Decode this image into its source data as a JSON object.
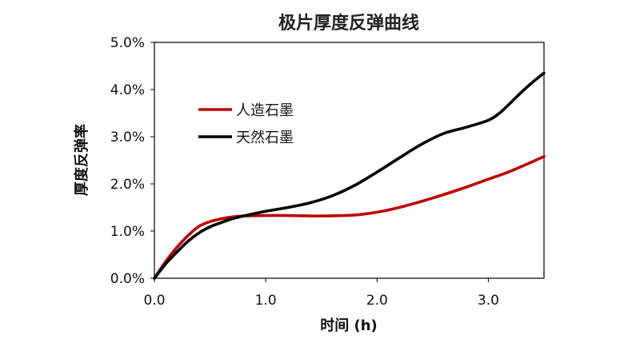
{
  "chart_data": {
    "type": "line",
    "title": "极片厚度反弹曲线",
    "xlabel": "时间 (h)",
    "ylabel": "厚度反弹率",
    "xlim": [
      0,
      3.5
    ],
    "ylim": [
      0,
      5.0
    ],
    "xticks": [
      0,
      1,
      2,
      3
    ],
    "xtick_labels": [
      "0.0",
      "1.0",
      "2.0",
      "3.0"
    ],
    "yticks": [
      0,
      1,
      2,
      3,
      4,
      5
    ],
    "ytick_labels": [
      "0.0%",
      "1.0%",
      "2.0%",
      "3.0%",
      "4.0%",
      "5.0%"
    ],
    "grid": false,
    "legend_position": "upper-left",
    "series": [
      {
        "name": "人造石墨",
        "color": "#c00000",
        "x": [
          0,
          0.1,
          0.2,
          0.3,
          0.4,
          0.5,
          0.6,
          0.7,
          0.8,
          1.0,
          1.2,
          1.5,
          1.8,
          2.0,
          2.2,
          2.5,
          2.8,
          3.0,
          3.2,
          3.5
        ],
        "y": [
          0,
          0.35,
          0.65,
          0.9,
          1.1,
          1.2,
          1.26,
          1.3,
          1.32,
          1.33,
          1.33,
          1.32,
          1.34,
          1.4,
          1.5,
          1.7,
          1.93,
          2.1,
          2.27,
          2.58
        ]
      },
      {
        "name": "天然石墨",
        "color": "#000000",
        "x": [
          0,
          0.1,
          0.2,
          0.3,
          0.4,
          0.5,
          0.6,
          0.7,
          0.8,
          1.0,
          1.2,
          1.4,
          1.6,
          1.8,
          2.0,
          2.2,
          2.4,
          2.6,
          2.8,
          3.0,
          3.1,
          3.2,
          3.3,
          3.4,
          3.5
        ],
        "y": [
          0,
          0.3,
          0.55,
          0.78,
          0.96,
          1.09,
          1.18,
          1.26,
          1.32,
          1.42,
          1.5,
          1.6,
          1.75,
          1.97,
          2.25,
          2.55,
          2.84,
          3.07,
          3.2,
          3.35,
          3.5,
          3.72,
          3.95,
          4.16,
          4.35
        ]
      }
    ]
  }
}
